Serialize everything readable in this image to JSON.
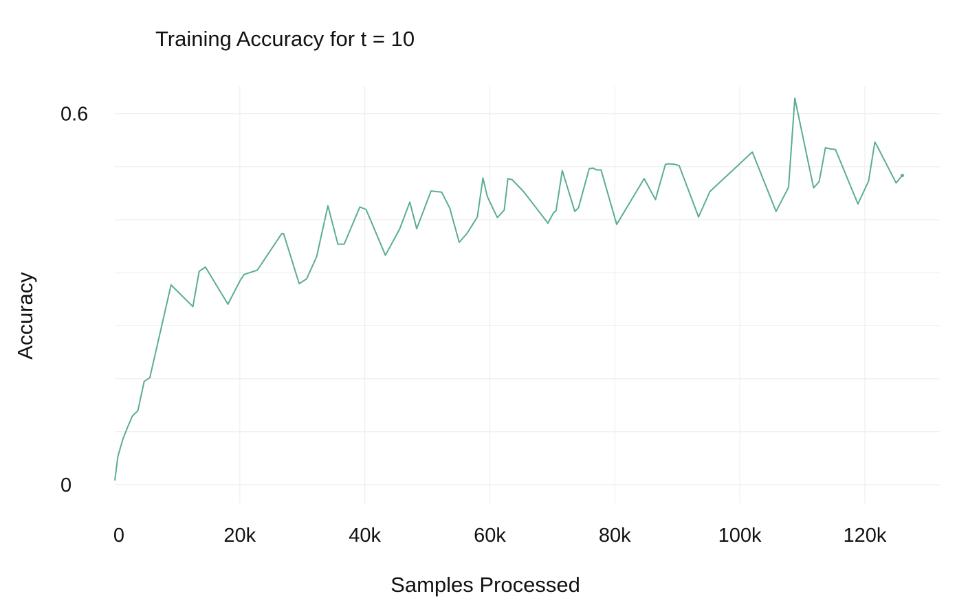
{
  "chart_data": {
    "type": "line",
    "title": "Training Accuracy for t = 10",
    "xlabel": "Samples Processed",
    "ylabel": "Accuracy",
    "xlim": [
      0,
      132000
    ],
    "ylim": [
      -0.03,
      0.645
    ],
    "x_ticks": [
      0,
      20000,
      40000,
      60000,
      80000,
      100000,
      120000
    ],
    "x_tick_labels": [
      "0",
      "20k",
      "40k",
      "60k",
      "80k",
      "100k",
      "120k"
    ],
    "y_ticks": [
      0,
      0.6
    ],
    "y_tick_labels": [
      "0",
      "0.6"
    ],
    "grid": true,
    "legend": "none",
    "series": [
      {
        "color": "#5aae8c",
        "x": [
          0,
          500,
          1300,
          2000,
          2800,
          3700,
          4700,
          5600,
          9000,
          12500,
          13500,
          14500,
          18100,
          20100,
          20700,
          22800,
          26700,
          27000,
          29500,
          30700,
          32300,
          34100,
          35700,
          36700,
          39200,
          40200,
          43300,
          45600,
          47200,
          48300,
          50600,
          52300,
          53600,
          55100,
          56400,
          57200,
          58000,
          58900,
          59600,
          61200,
          62300,
          62900,
          63600,
          65400,
          69300,
          70200,
          70600,
          71600,
          73600,
          74200,
          75900,
          76500,
          77100,
          77800,
          78600,
          80300,
          84700,
          86500,
          88100,
          88600,
          89600,
          90300,
          93400,
          95200,
          102000,
          105800,
          107800,
          108800,
          111800,
          112700,
          113700,
          114500,
          115300,
          118900,
          120600,
          121600,
          121900,
          125000,
          126000
        ],
        "y": [
          0.007,
          0.046,
          0.074,
          0.092,
          0.111,
          0.12,
          0.167,
          0.173,
          0.323,
          0.288,
          0.345,
          0.352,
          0.292,
          0.331,
          0.34,
          0.347,
          0.406,
          0.406,
          0.325,
          0.333,
          0.369,
          0.451,
          0.389,
          0.389,
          0.449,
          0.445,
          0.371,
          0.414,
          0.457,
          0.414,
          0.475,
          0.473,
          0.447,
          0.392,
          0.407,
          0.42,
          0.433,
          0.496,
          0.466,
          0.432,
          0.444,
          0.495,
          0.493,
          0.474,
          0.423,
          0.44,
          0.443,
          0.508,
          0.442,
          0.448,
          0.511,
          0.512,
          0.509,
          0.509,
          0.481,
          0.421,
          0.495,
          0.461,
          0.518,
          0.519,
          0.518,
          0.516,
          0.433,
          0.474,
          0.538,
          0.442,
          0.481,
          0.625,
          0.48,
          0.49,
          0.545,
          0.543,
          0.542,
          0.454,
          0.491,
          0.554,
          0.549,
          0.488,
          0.5
        ]
      }
    ]
  }
}
